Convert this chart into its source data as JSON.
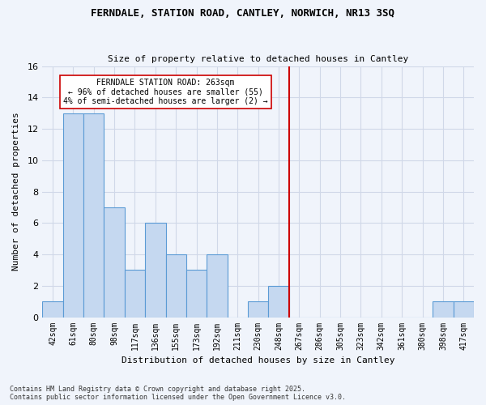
{
  "title": "FERNDALE, STATION ROAD, CANTLEY, NORWICH, NR13 3SQ",
  "subtitle": "Size of property relative to detached houses in Cantley",
  "xlabel": "Distribution of detached houses by size in Cantley",
  "ylabel": "Number of detached properties",
  "categories": [
    "42sqm",
    "61sqm",
    "80sqm",
    "98sqm",
    "117sqm",
    "136sqm",
    "155sqm",
    "173sqm",
    "192sqm",
    "211sqm",
    "230sqm",
    "248sqm",
    "267sqm",
    "286sqm",
    "305sqm",
    "323sqm",
    "342sqm",
    "361sqm",
    "380sqm",
    "398sqm",
    "417sqm"
  ],
  "values": [
    1,
    13,
    13,
    7,
    3,
    6,
    4,
    3,
    4,
    0,
    1,
    2,
    0,
    0,
    0,
    0,
    0,
    0,
    0,
    1,
    1
  ],
  "bar_color": "#c5d8f0",
  "bar_edge_color": "#5b9bd5",
  "vline_x": 12,
  "vline_color": "#cc0000",
  "annotation_title": "FERNDALE STATION ROAD: 263sqm",
  "annotation_line1": "← 96% of detached houses are smaller (55)",
  "annotation_line2": "4% of semi-detached houses are larger (2) →",
  "annotation_box_color": "#ffffff",
  "annotation_box_edge": "#cc0000",
  "ylim": [
    0,
    16
  ],
  "yticks": [
    0,
    2,
    4,
    6,
    8,
    10,
    12,
    14,
    16
  ],
  "grid_color": "#d0d8e8",
  "background_color": "#f0f4fb",
  "footer1": "Contains HM Land Registry data © Crown copyright and database right 2025.",
  "footer2": "Contains public sector information licensed under the Open Government Licence v3.0."
}
